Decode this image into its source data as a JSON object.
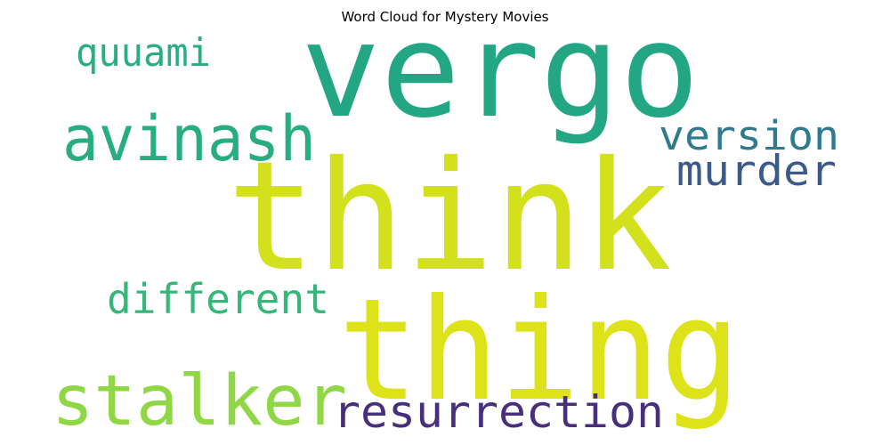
{
  "title": "Word Cloud for Mystery Movies",
  "words": [
    {
      "text": "vergo",
      "color": "#22a684"
    },
    {
      "text": "think",
      "color": "#d2e11c"
    },
    {
      "text": "thing",
      "color": "#dde318"
    },
    {
      "text": "avinash",
      "color": "#27ad81"
    },
    {
      "text": "stalker",
      "color": "#8fd744"
    },
    {
      "text": "resurrection",
      "color": "#472f7d"
    },
    {
      "text": "murder",
      "color": "#3b5a8b"
    },
    {
      "text": "version",
      "color": "#2f7a8e"
    },
    {
      "text": "different",
      "color": "#35b779"
    },
    {
      "text": "quuami",
      "color": "#29af7f"
    }
  ]
}
